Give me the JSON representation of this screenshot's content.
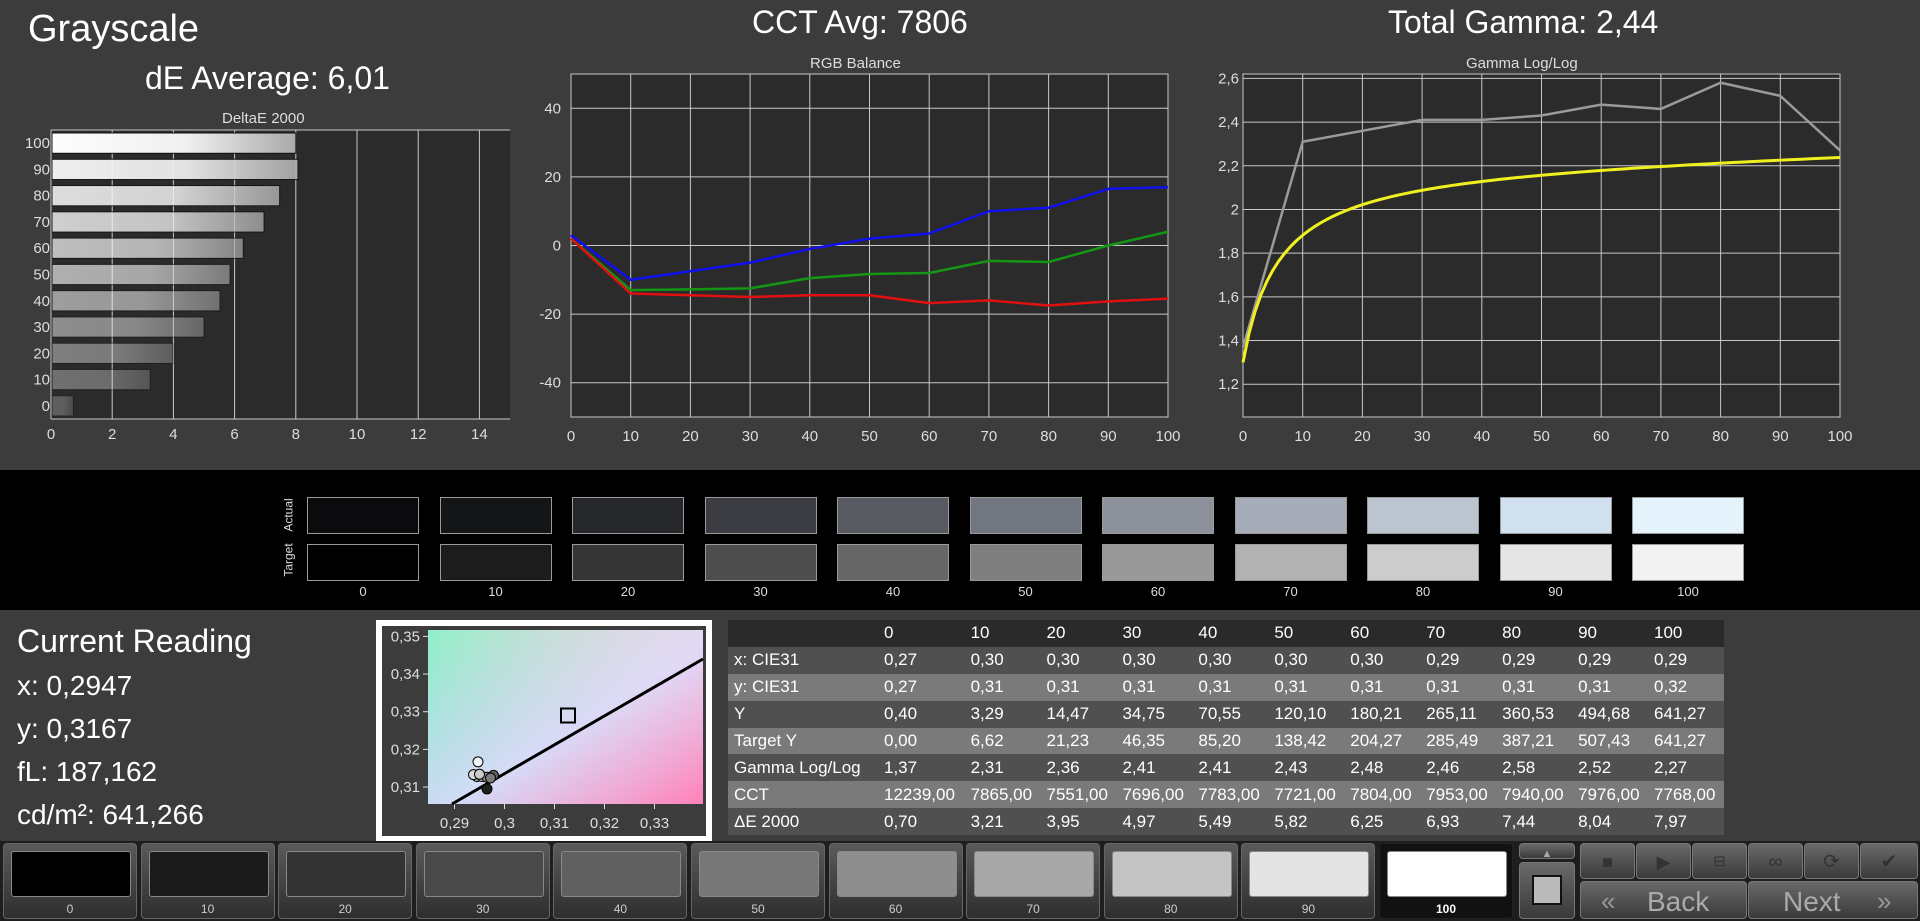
{
  "header": {
    "title": "Grayscale",
    "de_average": "dE Average: 6,01",
    "cct_avg": "CCT Avg: 7806",
    "total_gamma": "Total Gamma: 2,44"
  },
  "deltae_chart": {
    "title": "DeltaE 2000",
    "levels": [
      "100",
      "90",
      "80",
      "70",
      "60",
      "50",
      "40",
      "30",
      "20",
      "10",
      "0"
    ],
    "values": [
      7.97,
      8.04,
      7.44,
      6.93,
      6.25,
      5.82,
      5.49,
      4.97,
      3.95,
      3.21,
      0.7
    ],
    "x_ticks": [
      "0",
      "2",
      "4",
      "6",
      "8",
      "10",
      "12",
      "14"
    ],
    "xlim": [
      0,
      15
    ]
  },
  "rgb_chart": {
    "title": "RGB Balance",
    "x": [
      0,
      10,
      20,
      30,
      40,
      50,
      60,
      70,
      80,
      90,
      100
    ],
    "x_ticks": [
      "0",
      "10",
      "20",
      "30",
      "40",
      "50",
      "60",
      "70",
      "80",
      "90",
      "100"
    ],
    "y_ticks": [
      "40",
      "20",
      "0",
      "-20",
      "-40"
    ],
    "ylim": [
      -50,
      50
    ],
    "series": [
      {
        "color": "#1010ee",
        "values": [
          3,
          -10,
          -7.5,
          -5,
          -1,
          2,
          3.5,
          10,
          11,
          16.5,
          17
        ]
      },
      {
        "color": "#149614",
        "values": [
          2,
          -13,
          -12.8,
          -12.5,
          -9.5,
          -8.3,
          -8,
          -4.5,
          -4.8,
          0,
          4
        ]
      },
      {
        "color": "#e01010",
        "values": [
          2,
          -14,
          -14.5,
          -15,
          -14.5,
          -14.5,
          -16.8,
          -16,
          -17.5,
          -16.3,
          -15.5
        ]
      }
    ]
  },
  "gamma_chart": {
    "title": "Gamma Log/Log",
    "x_ticks": [
      "0",
      "10",
      "20",
      "30",
      "40",
      "50",
      "60",
      "70",
      "80",
      "90",
      "100"
    ],
    "y_ticks": [
      "2,6",
      "2,4",
      "2,2",
      "2",
      "1,8",
      "1,6",
      "1,4",
      "1,2"
    ],
    "ylim": [
      1.05,
      2.62
    ],
    "measured": {
      "color": "#9a9a9a",
      "x": [
        0,
        10,
        20,
        30,
        40,
        50,
        60,
        70,
        80,
        90,
        100
      ],
      "values": [
        1.37,
        2.31,
        2.36,
        2.41,
        2.41,
        2.43,
        2.48,
        2.46,
        2.58,
        2.52,
        2.27
      ]
    },
    "target": {
      "color": "#f0f020",
      "gamma": 2.22,
      "start": 1.37
    }
  },
  "swatches": {
    "actual_label": "Actual",
    "target_label": "Target",
    "labels": [
      "0",
      "10",
      "20",
      "30",
      "40",
      "50",
      "60",
      "70",
      "80",
      "90",
      "100"
    ],
    "actual": [
      "#0b0b0d",
      "#141517",
      "#26272b",
      "#3c3d43",
      "#585a62",
      "#727680",
      "#8c919b",
      "#a6acb8",
      "#bcc4d0",
      "#d0e0ef",
      "#e4f2fb"
    ],
    "target": [
      "#000000",
      "#1c1c1c",
      "#353535",
      "#4d4d4d",
      "#666666",
      "#7f7f7f",
      "#999999",
      "#b2b2b2",
      "#cccccc",
      "#e5e5e5",
      "#f2f2f2"
    ]
  },
  "reading": {
    "title": "Current Reading",
    "x": "x: 0,2947",
    "y": "y: 0,3167",
    "fl": "fL: 187,162",
    "cdm2": "cd/m²: 641,266"
  },
  "cie": {
    "x_ticks": [
      "0,29",
      "0,3",
      "0,31",
      "0,32",
      "0,33"
    ],
    "y_ticks": [
      "0,35",
      "0,34",
      "0,33",
      "0,32",
      "0,31"
    ]
  },
  "table": {
    "headers": [
      "",
      "0",
      "10",
      "20",
      "30",
      "40",
      "50",
      "60",
      "70",
      "80",
      "90",
      "100"
    ],
    "rows": [
      {
        "label": "x: CIE31",
        "cells": [
          "0,27",
          "0,30",
          "0,30",
          "0,30",
          "0,30",
          "0,30",
          "0,30",
          "0,29",
          "0,29",
          "0,29",
          "0,29"
        ]
      },
      {
        "label": "y: CIE31",
        "cells": [
          "0,27",
          "0,31",
          "0,31",
          "0,31",
          "0,31",
          "0,31",
          "0,31",
          "0,31",
          "0,31",
          "0,31",
          "0,32"
        ]
      },
      {
        "label": "Y",
        "cells": [
          "0,40",
          "3,29",
          "14,47",
          "34,75",
          "70,55",
          "120,10",
          "180,21",
          "265,11",
          "360,53",
          "494,68",
          "641,27"
        ]
      },
      {
        "label": "Target Y",
        "cells": [
          "0,00",
          "6,62",
          "21,23",
          "46,35",
          "85,20",
          "138,42",
          "204,27",
          "285,49",
          "387,21",
          "507,43",
          "641,27"
        ]
      },
      {
        "label": "Gamma Log/Log",
        "cells": [
          "1,37",
          "2,31",
          "2,36",
          "2,41",
          "2,41",
          "2,43",
          "2,48",
          "2,46",
          "2,58",
          "2,52",
          "2,27"
        ]
      },
      {
        "label": "CCT",
        "cells": [
          "12239,00",
          "7865,00",
          "7551,00",
          "7696,00",
          "7783,00",
          "7721,00",
          "7804,00",
          "7953,00",
          "7940,00",
          "7976,00",
          "7768,00"
        ]
      },
      {
        "label": "ΔE 2000",
        "cells": [
          "0,70",
          "3,21",
          "3,95",
          "4,97",
          "5,49",
          "5,82",
          "6,25",
          "6,93",
          "7,44",
          "8,04",
          "7,97"
        ]
      }
    ]
  },
  "patches": {
    "labels": [
      "0",
      "10",
      "20",
      "30",
      "40",
      "50",
      "60",
      "70",
      "80",
      "90",
      "100"
    ],
    "colors": [
      "#000000",
      "#1b1b1b",
      "#333333",
      "#4a4a4a",
      "#606060",
      "#777777",
      "#8e8e8e",
      "#a8a8a8",
      "#c4c4c4",
      "#e4e4e4",
      "#ffffff"
    ],
    "selected_index": 10
  },
  "nav": {
    "back_label": "Back",
    "next_label": "Next"
  }
}
